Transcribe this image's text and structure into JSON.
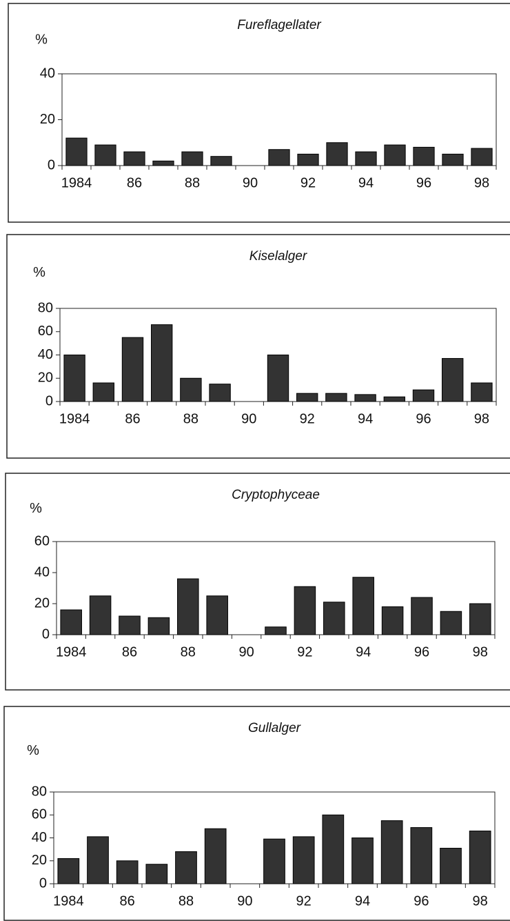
{
  "chart_data": [
    {
      "type": "bar",
      "title": "Fureflagellater",
      "ylabel": "%",
      "color": "#333333",
      "categories": [
        "1984",
        null,
        "86",
        null,
        "88",
        null,
        "90",
        null,
        "92",
        null,
        "94",
        null,
        "96",
        null,
        "98"
      ],
      "values": [
        12,
        9,
        6,
        2,
        6,
        4,
        null,
        7,
        5,
        10,
        6,
        9,
        8,
        5,
        7.5
      ],
      "ylim": [
        0,
        40
      ],
      "yticks": [
        0,
        20,
        40
      ]
    },
    {
      "type": "bar",
      "title": "Kiselalger",
      "ylabel": "%",
      "color": "#333333",
      "categories": [
        "1984",
        null,
        "86",
        null,
        "88",
        null,
        "90",
        null,
        "92",
        null,
        "94",
        null,
        "96",
        null,
        "98"
      ],
      "values": [
        40,
        16,
        55,
        66,
        20,
        15,
        null,
        40,
        7,
        7,
        6,
        4,
        10,
        37,
        16
      ],
      "ylim": [
        0,
        80
      ],
      "yticks": [
        0,
        20,
        40,
        60,
        80
      ]
    },
    {
      "type": "bar",
      "title": "Cryptophyceae",
      "ylabel": "%",
      "color": "#333333",
      "categories": [
        "1984",
        null,
        "86",
        null,
        "88",
        null,
        "90",
        null,
        "92",
        null,
        "94",
        null,
        "96",
        null,
        "98"
      ],
      "values": [
        16,
        25,
        12,
        11,
        36,
        25,
        null,
        5,
        31,
        21,
        37,
        18,
        24,
        15,
        20
      ],
      "ylim": [
        0,
        60
      ],
      "yticks": [
        0,
        20,
        40,
        60
      ]
    },
    {
      "type": "bar",
      "title": "Gullalger",
      "ylabel": "%",
      "color": "#333333",
      "categories": [
        "1984",
        null,
        "86",
        null,
        "88",
        null,
        "90",
        null,
        "92",
        null,
        "94",
        null,
        "96",
        null,
        "98"
      ],
      "values": [
        22,
        41,
        20,
        17,
        28,
        48,
        null,
        39,
        41,
        60,
        40,
        55,
        49,
        31,
        46
      ],
      "ylim": [
        0,
        80
      ],
      "yticks": [
        0,
        20,
        40,
        60,
        80
      ]
    }
  ]
}
